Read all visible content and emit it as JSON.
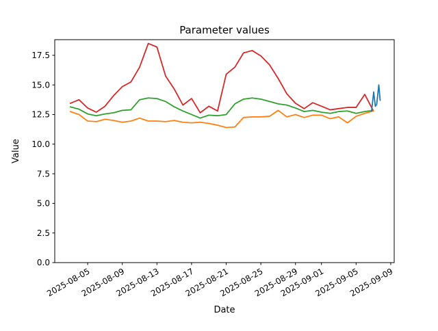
{
  "chart_data": {
    "type": "line",
    "title": "Parameter values",
    "xlabel": "Date",
    "ylabel": "Value",
    "x_type": "date",
    "grid": false,
    "legend": false,
    "ylim": [
      0,
      18.82
    ],
    "xlim_day_index": [
      -1.8,
      37.4
    ],
    "y_ticks": [
      0.0,
      2.5,
      5.0,
      7.5,
      10.0,
      12.5,
      15.0,
      17.5
    ],
    "x_ticks": [
      {
        "day_index": 2,
        "label": "2025-08-05"
      },
      {
        "day_index": 6,
        "label": "2025-08-09"
      },
      {
        "day_index": 10,
        "label": "2025-08-13"
      },
      {
        "day_index": 14,
        "label": "2025-08-17"
      },
      {
        "day_index": 18,
        "label": "2025-08-21"
      },
      {
        "day_index": 22,
        "label": "2025-08-25"
      },
      {
        "day_index": 26,
        "label": "2025-08-29"
      },
      {
        "day_index": 29,
        "label": "2025-09-01"
      },
      {
        "day_index": 33,
        "label": "2025-09-05"
      },
      {
        "day_index": 37,
        "label": "2025-09-09"
      }
    ],
    "dates": [
      "2025-08-03",
      "2025-08-04",
      "2025-08-05",
      "2025-08-06",
      "2025-08-07",
      "2025-08-08",
      "2025-08-09",
      "2025-08-10",
      "2025-08-11",
      "2025-08-12",
      "2025-08-13",
      "2025-08-14",
      "2025-08-15",
      "2025-08-16",
      "2025-08-17",
      "2025-08-18",
      "2025-08-19",
      "2025-08-20",
      "2025-08-21",
      "2025-08-22",
      "2025-08-23",
      "2025-08-24",
      "2025-08-25",
      "2025-08-26",
      "2025-08-27",
      "2025-08-28",
      "2025-08-29",
      "2025-08-30",
      "2025-08-31",
      "2025-09-01",
      "2025-09-02",
      "2025-09-03",
      "2025-09-04",
      "2025-09-05",
      "2025-09-06",
      "2025-09-07"
    ],
    "series": [
      {
        "name": "red",
        "color": "#d62728",
        "values": [
          13.45,
          13.75,
          13.05,
          12.7,
          13.2,
          14.1,
          14.85,
          15.25,
          16.5,
          18.5,
          18.2,
          15.75,
          14.65,
          13.3,
          13.85,
          12.65,
          13.2,
          12.8,
          15.9,
          16.5,
          17.7,
          17.9,
          17.45,
          16.7,
          15.55,
          14.25,
          13.45,
          13.0,
          13.5,
          13.2,
          12.9,
          13.0,
          13.1,
          13.1,
          14.2,
          12.8
        ]
      },
      {
        "name": "green",
        "color": "#2ca02c",
        "values": [
          13.15,
          12.95,
          12.55,
          12.4,
          12.55,
          12.65,
          12.85,
          12.9,
          13.75,
          13.9,
          13.85,
          13.6,
          13.15,
          12.8,
          12.5,
          12.2,
          12.45,
          12.4,
          12.5,
          13.4,
          13.8,
          13.9,
          13.8,
          13.6,
          13.4,
          13.3,
          13.05,
          12.75,
          12.85,
          12.7,
          12.6,
          12.75,
          12.8,
          12.6,
          12.75,
          12.85
        ]
      },
      {
        "name": "orange",
        "color": "#ff7f0e",
        "values": [
          12.75,
          12.5,
          11.95,
          11.9,
          12.1,
          12.0,
          11.85,
          11.95,
          12.2,
          11.95,
          11.95,
          11.9,
          12.0,
          11.85,
          11.8,
          11.85,
          11.75,
          11.6,
          11.4,
          11.45,
          12.25,
          12.3,
          12.3,
          12.35,
          12.85,
          12.3,
          12.5,
          12.25,
          12.45,
          12.45,
          12.15,
          12.3,
          11.8,
          12.35,
          12.6,
          12.8
        ]
      },
      {
        "name": "blue",
        "color": "#1f77b4",
        "x_day_index": [
          34.79,
          35.03,
          35.22,
          35.38,
          35.62,
          35.78
        ],
        "timestamps": [
          "2025-09-06 19:00",
          "2025-09-07 01:00",
          "2025-09-07 05:00",
          "2025-09-07 09:00",
          "2025-09-07 15:00",
          "2025-09-07 19:00"
        ],
        "values": [
          12.8,
          14.4,
          13.2,
          13.35,
          15.0,
          13.7
        ]
      }
    ]
  }
}
